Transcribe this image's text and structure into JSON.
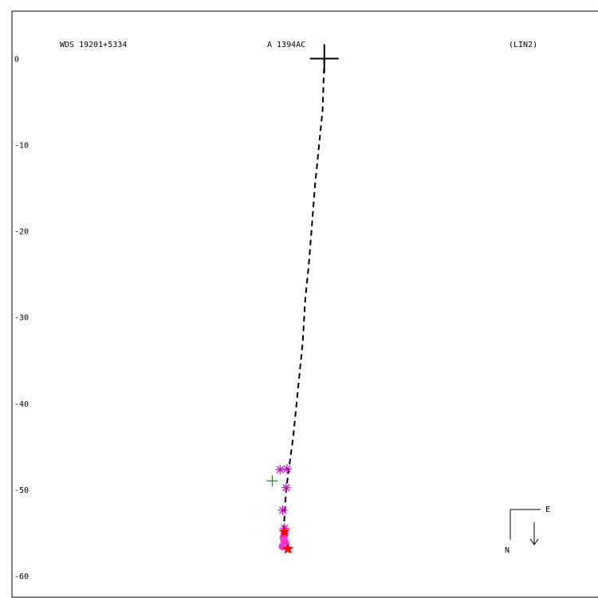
{
  "header": {
    "left": "WDS 19201+5334",
    "center": "A  1394AC",
    "right": "(LIN2)"
  },
  "chart_data": {
    "type": "scatter",
    "title": "",
    "xlabel": "",
    "ylabel": "",
    "ylim": [
      -62.5,
      5.5
    ],
    "xlim": [
      -36,
      32
    ],
    "y_ticks": [
      0,
      -10,
      -20,
      -30,
      -40,
      -50,
      -60
    ],
    "y_tick_labels": [
      "0",
      "-10",
      "-20",
      "-30",
      "-40",
      "-50",
      "-60"
    ],
    "primary": {
      "x": 0,
      "y": 0
    },
    "orbit_curve": {
      "style": "dashed",
      "x": [
        0,
        -0.2,
        -0.6,
        -1.1,
        -1.4,
        -1.8,
        -2.2,
        -2.5,
        -2.9,
        -3.3,
        -3.6,
        -4.0,
        -4.4,
        -4.7
      ],
      "y": [
        0,
        -6,
        -10,
        -15,
        -19,
        -24,
        -28,
        -33,
        -37,
        -41,
        -44,
        -47,
        -50,
        -55
      ]
    },
    "observations": [
      {
        "kind": "magenta-asterisk",
        "x": -5.1,
        "y": -47.7
      },
      {
        "kind": "magenta-asterisk",
        "x": -4.3,
        "y": -47.6
      },
      {
        "kind": "magenta-asterisk",
        "x": -4.4,
        "y": -49.8
      },
      {
        "kind": "magenta-asterisk",
        "x": -4.8,
        "y": -52.4
      },
      {
        "kind": "magenta-asterisk",
        "x": -4.6,
        "y": -54.5
      },
      {
        "kind": "green-plus",
        "x": -6.0,
        "y": -49.0
      },
      {
        "kind": "magenta-dot",
        "x": -4.6,
        "y": -55.2
      },
      {
        "kind": "magenta-dot",
        "x": -4.7,
        "y": -55.6
      },
      {
        "kind": "magenta-dot",
        "x": -4.6,
        "y": -56.0
      },
      {
        "kind": "magenta-dot",
        "x": -4.5,
        "y": -56.3
      },
      {
        "kind": "magenta-dot",
        "x": -4.8,
        "y": -56.6
      },
      {
        "kind": "red-star",
        "x": -4.6,
        "y": -54.9
      },
      {
        "kind": "red-star",
        "x": -4.2,
        "y": -56.9
      }
    ],
    "colors": {
      "axes": "#000000",
      "asterisk": "#cc00cc",
      "dot": "#ff33cc",
      "plus": "#009900",
      "star": "#ff0000"
    }
  },
  "orientation": {
    "east_label": "E",
    "north_label": "N"
  }
}
